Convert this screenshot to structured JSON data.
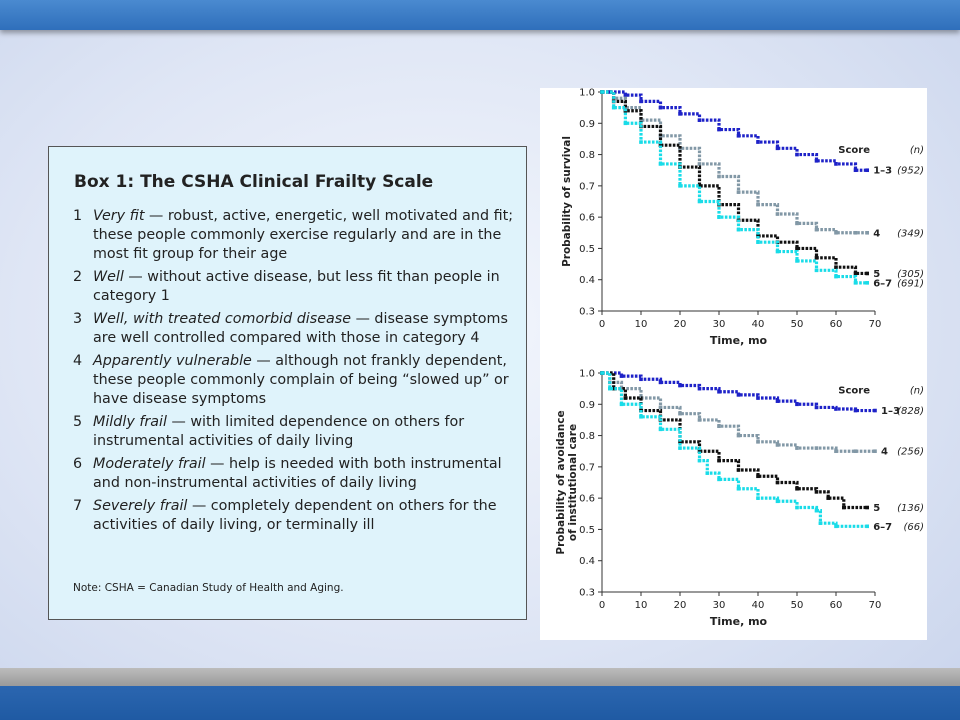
{
  "box": {
    "title": "Box 1: The CSHA Clinical Frailty Scale",
    "items": [
      {
        "num": "1",
        "term": "Very fit",
        "text": " — robust, active, energetic, well motivated and fit; these people commonly exercise regularly and are in the most fit group for their age"
      },
      {
        "num": "2",
        "term": "Well",
        "text": " — without active disease, but less fit than people in category 1"
      },
      {
        "num": "3",
        "term": "Well, with treated comorbid disease",
        "text": " — disease symptoms are well controlled compared with those in category 4"
      },
      {
        "num": "4",
        "term": "Apparently vulnerable",
        "text": " — although not frankly dependent, these people commonly complain of being “slowed up” or have disease symptoms"
      },
      {
        "num": "5",
        "term": "Mildly frail",
        "text": " — with limited dependence on others for instrumental activities of daily living"
      },
      {
        "num": "6",
        "term": "Moderately frail",
        "text": " — help is needed with both instrumental and non-instrumental activities of daily living"
      },
      {
        "num": "7",
        "term": "Severely frail",
        "text": " — completely dependent on others for the activities of daily living, or terminally ill"
      }
    ],
    "note": "Note: CSHA = Canadian Study of Health and Aging."
  },
  "colors": {
    "s13": "#1e22c8",
    "s4": "#8298a6",
    "s5": "#111111",
    "s67": "#19dce8"
  },
  "chart_data": [
    {
      "type": "line",
      "xlabel": "Time, mo",
      "ylabel": "Probability of survival",
      "xlim": [
        0,
        70
      ],
      "ylim": [
        0.3,
        1.0
      ],
      "xticks": [
        "0",
        "10",
        "20",
        "30",
        "40",
        "50",
        "60",
        "70"
      ],
      "yticks": [
        "0.3",
        "0.4",
        "0.5",
        "0.6",
        "0.7",
        "0.8",
        "0.9",
        "1.0"
      ],
      "legend_title": "Score",
      "legend_title_n": "(n)",
      "series": [
        {
          "name": "1–3",
          "n": "(952)",
          "color": "#1e22c8",
          "x": [
            0,
            2,
            6,
            10,
            15,
            20,
            25,
            30,
            35,
            40,
            45,
            50,
            55,
            60,
            65,
            68
          ],
          "y": [
            1.0,
            1.0,
            0.99,
            0.97,
            0.95,
            0.93,
            0.91,
            0.88,
            0.86,
            0.84,
            0.82,
            0.8,
            0.78,
            0.77,
            0.75,
            0.75
          ]
        },
        {
          "name": "4",
          "n": "(349)",
          "color": "#8298a6",
          "x": [
            0,
            3,
            6,
            10,
            15,
            20,
            25,
            30,
            35,
            40,
            45,
            50,
            55,
            60,
            65,
            68
          ],
          "y": [
            1.0,
            0.98,
            0.95,
            0.91,
            0.86,
            0.82,
            0.77,
            0.73,
            0.68,
            0.64,
            0.61,
            0.58,
            0.56,
            0.55,
            0.55,
            0.55
          ]
        },
        {
          "name": "5",
          "n": "(305)",
          "color": "#111111",
          "x": [
            0,
            3,
            6,
            10,
            15,
            20,
            25,
            30,
            35,
            40,
            45,
            50,
            55,
            60,
            65,
            68
          ],
          "y": [
            1.0,
            0.97,
            0.94,
            0.89,
            0.83,
            0.76,
            0.7,
            0.64,
            0.59,
            0.54,
            0.52,
            0.5,
            0.47,
            0.44,
            0.42,
            0.42
          ]
        },
        {
          "name": "6–7",
          "n": "(691)",
          "color": "#19dce8",
          "x": [
            0,
            3,
            6,
            10,
            15,
            20,
            25,
            30,
            35,
            40,
            45,
            50,
            55,
            60,
            65,
            68
          ],
          "y": [
            1.0,
            0.95,
            0.9,
            0.84,
            0.77,
            0.7,
            0.65,
            0.6,
            0.56,
            0.52,
            0.49,
            0.46,
            0.43,
            0.41,
            0.39,
            0.39
          ]
        }
      ]
    },
    {
      "type": "line",
      "xlabel": "Time, mo",
      "ylabel": "Probability of avoidance of institutional care",
      "xlim": [
        0,
        70
      ],
      "ylim": [
        0.3,
        1.0
      ],
      "xticks": [
        "0",
        "10",
        "20",
        "30",
        "40",
        "50",
        "60",
        "70"
      ],
      "yticks": [
        "0.3",
        "0.4",
        "0.5",
        "0.6",
        "0.7",
        "0.8",
        "0.9",
        "1.0"
      ],
      "legend_title": "Score",
      "legend_title_n": "(n)",
      "series": [
        {
          "name": "1–3",
          "n": "(828)",
          "color": "#1e22c8",
          "x": [
            0,
            5,
            10,
            15,
            20,
            25,
            30,
            35,
            40,
            45,
            50,
            55,
            60,
            65,
            70
          ],
          "y": [
            1.0,
            0.99,
            0.98,
            0.97,
            0.96,
            0.95,
            0.94,
            0.93,
            0.92,
            0.91,
            0.9,
            0.89,
            0.885,
            0.88,
            0.88
          ]
        },
        {
          "name": "4",
          "n": "(256)",
          "color": "#8298a6",
          "x": [
            0,
            2,
            5,
            10,
            15,
            20,
            25,
            30,
            35,
            40,
            45,
            50,
            55,
            60,
            65,
            70
          ],
          "y": [
            1.0,
            0.97,
            0.95,
            0.92,
            0.89,
            0.87,
            0.85,
            0.83,
            0.8,
            0.78,
            0.77,
            0.76,
            0.76,
            0.75,
            0.75,
            0.75
          ]
        },
        {
          "name": "5",
          "n": "(136)",
          "color": "#111111",
          "x": [
            0,
            3,
            6,
            10,
            15,
            20,
            25,
            30,
            35,
            40,
            45,
            50,
            55,
            58,
            62,
            68
          ],
          "y": [
            1.0,
            0.95,
            0.92,
            0.88,
            0.85,
            0.78,
            0.75,
            0.72,
            0.69,
            0.67,
            0.65,
            0.63,
            0.62,
            0.6,
            0.57,
            0.57
          ]
        },
        {
          "name": "6–7",
          "n": "(66)",
          "color": "#19dce8",
          "x": [
            0,
            2,
            5,
            10,
            15,
            20,
            25,
            27,
            30,
            35,
            40,
            45,
            50,
            55,
            56,
            60,
            68
          ],
          "y": [
            1.0,
            0.95,
            0.9,
            0.86,
            0.82,
            0.76,
            0.72,
            0.68,
            0.66,
            0.63,
            0.6,
            0.59,
            0.57,
            0.56,
            0.52,
            0.51,
            0.51
          ]
        }
      ]
    }
  ]
}
